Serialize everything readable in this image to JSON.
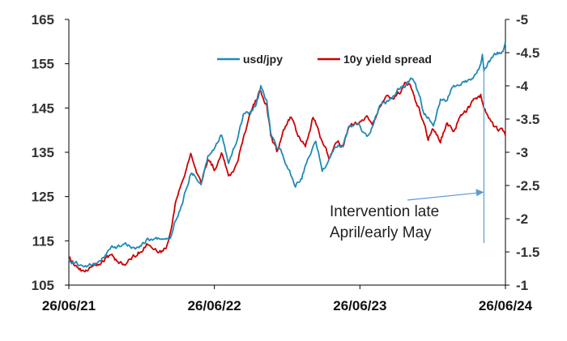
{
  "chart_data": {
    "type": "line",
    "title": "",
    "xlabel": "",
    "ylabel": "",
    "x_ticks": [
      "26/06/21",
      "26/06/22",
      "26/06/23",
      "26/06/24"
    ],
    "x_range": [
      "2021-06-26",
      "2024-06-26"
    ],
    "y_left": {
      "ticks": [
        "105",
        "115",
        "125",
        "135",
        "145",
        "155",
        "165"
      ],
      "lim": [
        105,
        165
      ]
    },
    "y_right": {
      "ticks": [
        "-1",
        "-1.5",
        "-2",
        "-2.5",
        "-3",
        "-3.5",
        "-4",
        "-4.5",
        "-5"
      ],
      "lim": [
        -1,
        -5
      ],
      "reversed": true
    },
    "grid": false,
    "legend_position": "top",
    "series": [
      {
        "name": "usd/jpy",
        "color": "#1f8ab5",
        "axis": "left",
        "x": [
          "2021-06-26",
          "2021-07-15",
          "2021-08-10",
          "2021-09-10",
          "2021-10-10",
          "2021-11-10",
          "2021-12-10",
          "2022-01-10",
          "2022-02-10",
          "2022-02-25",
          "2022-03-10",
          "2022-03-20",
          "2022-04-01",
          "2022-04-15",
          "2022-04-28",
          "2022-05-10",
          "2022-05-24",
          "2022-06-10",
          "2022-06-26",
          "2022-07-14",
          "2022-08-01",
          "2022-08-20",
          "2022-09-07",
          "2022-09-25",
          "2022-10-10",
          "2022-10-21",
          "2022-11-05",
          "2022-11-15",
          "2022-11-30",
          "2022-12-15",
          "2022-12-25",
          "2023-01-16",
          "2023-02-01",
          "2023-02-15",
          "2023-03-08",
          "2023-03-24",
          "2023-04-10",
          "2023-04-28",
          "2023-05-15",
          "2023-05-30",
          "2023-06-20",
          "2023-07-14",
          "2023-07-28",
          "2023-08-15",
          "2023-09-01",
          "2023-09-20",
          "2023-10-05",
          "2023-10-20",
          "2023-11-01",
          "2023-11-13",
          "2023-11-25",
          "2023-12-05",
          "2023-12-15",
          "2023-12-28",
          "2024-01-15",
          "2024-02-01",
          "2024-02-15",
          "2024-03-01",
          "2024-03-20",
          "2024-04-05",
          "2024-04-25",
          "2024-04-29",
          "2024-05-03",
          "2024-05-15",
          "2024-06-01",
          "2024-06-20",
          "2024-06-26"
        ],
        "y": [
          110.6,
          109.8,
          109.5,
          109.9,
          113.5,
          114.0,
          113.5,
          115.2,
          115.5,
          115.0,
          116.2,
          119.5,
          122.0,
          126.5,
          130.5,
          130.0,
          127.0,
          134.0,
          135.5,
          139.0,
          132.5,
          137.0,
          143.5,
          144.0,
          146.0,
          149.5,
          146.5,
          139.0,
          136.5,
          134.5,
          132.0,
          127.5,
          129.5,
          133.5,
          137.5,
          131.0,
          133.0,
          136.5,
          136.5,
          140.5,
          141.5,
          138.5,
          141.0,
          145.5,
          146.0,
          147.8,
          149.5,
          150.0,
          151.5,
          150.5,
          147.0,
          143.5,
          143.0,
          141.0,
          147.0,
          146.5,
          150.0,
          150.0,
          151.0,
          151.5,
          154.5,
          156.5,
          152.5,
          155.5,
          157.0,
          158.0,
          160.0
        ]
      },
      {
        "name": "10y yield spread",
        "color": "#cc0000",
        "axis": "right",
        "x": [
          "2021-06-26",
          "2021-07-15",
          "2021-08-10",
          "2021-09-10",
          "2021-10-10",
          "2021-11-10",
          "2021-12-10",
          "2022-01-10",
          "2022-02-10",
          "2022-02-25",
          "2022-03-10",
          "2022-03-20",
          "2022-04-01",
          "2022-04-15",
          "2022-04-28",
          "2022-05-10",
          "2022-05-24",
          "2022-06-10",
          "2022-06-26",
          "2022-07-14",
          "2022-08-01",
          "2022-08-20",
          "2022-09-07",
          "2022-09-25",
          "2022-10-10",
          "2022-10-21",
          "2022-11-05",
          "2022-11-15",
          "2022-11-30",
          "2022-12-15",
          "2023-01-05",
          "2023-01-20",
          "2023-02-10",
          "2023-03-01",
          "2023-03-24",
          "2023-04-10",
          "2023-04-28",
          "2023-05-15",
          "2023-05-30",
          "2023-06-20",
          "2023-07-14",
          "2023-07-28",
          "2023-08-15",
          "2023-09-01",
          "2023-09-20",
          "2023-10-05",
          "2023-10-20",
          "2023-11-01",
          "2023-11-13",
          "2023-11-25",
          "2023-12-05",
          "2023-12-15",
          "2023-12-28",
          "2024-01-15",
          "2024-02-01",
          "2024-02-15",
          "2024-03-01",
          "2024-03-20",
          "2024-04-05",
          "2024-04-25",
          "2024-05-03",
          "2024-05-15",
          "2024-06-01",
          "2024-06-20",
          "2024-06-26"
        ],
        "y": [
          -1.4,
          -1.25,
          -1.2,
          -1.35,
          -1.45,
          -1.3,
          -1.45,
          -1.6,
          -1.5,
          -1.55,
          -1.8,
          -2.2,
          -2.45,
          -2.7,
          -3.0,
          -2.8,
          -2.5,
          -2.9,
          -2.75,
          -3.0,
          -2.6,
          -2.8,
          -3.2,
          -3.6,
          -3.8,
          -3.95,
          -3.7,
          -3.25,
          -3.0,
          -3.3,
          -3.55,
          -3.25,
          -3.1,
          -3.55,
          -3.15,
          -2.9,
          -3.15,
          -3.1,
          -3.35,
          -3.45,
          -3.5,
          -3.4,
          -3.7,
          -3.8,
          -3.85,
          -3.9,
          -4.05,
          -4.0,
          -3.8,
          -3.6,
          -3.4,
          -3.2,
          -3.35,
          -3.2,
          -3.45,
          -3.3,
          -3.5,
          -3.6,
          -3.75,
          -3.85,
          -3.65,
          -3.5,
          -3.35,
          -3.3,
          -3.25
        ]
      }
    ],
    "annotation": {
      "lines": [
        "Intervention late",
        "April/early May"
      ],
      "arrow_target": {
        "x": "2024-05-03",
        "y": -2.4
      },
      "marker_line_x": "2024-05-03",
      "arrow_color": "#5b9bd5"
    }
  }
}
